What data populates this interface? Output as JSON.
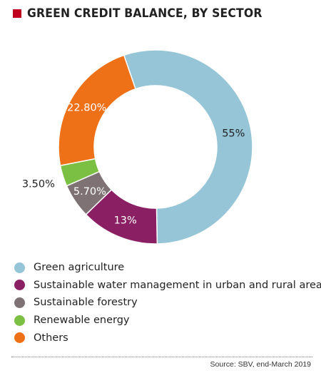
{
  "header": {
    "title": "GREEN CREDIT BALANCE, BY SECTOR"
  },
  "chart_data": {
    "type": "pie",
    "slices": [
      {
        "name": "Green agriculture",
        "value": 55,
        "label": "55%",
        "color": "#95c5d7"
      },
      {
        "name": "Sustainable water management in urban and rural areas",
        "value": 13,
        "label": "13%",
        "color": "#8a1f63"
      },
      {
        "name": "Sustainable forestry",
        "value": 5.7,
        "label": "5.70%",
        "color": "#7e7275"
      },
      {
        "name": "Renewable energy",
        "value": 3.5,
        "label": "3.50%",
        "color": "#7cc043"
      },
      {
        "name": "Others",
        "value": 22.8,
        "label": "22.80%",
        "color": "#ee7118"
      }
    ],
    "donut": true,
    "legend_position": "bottom-left"
  },
  "footer": {
    "source": "Source: SBV, end-March 2019"
  }
}
